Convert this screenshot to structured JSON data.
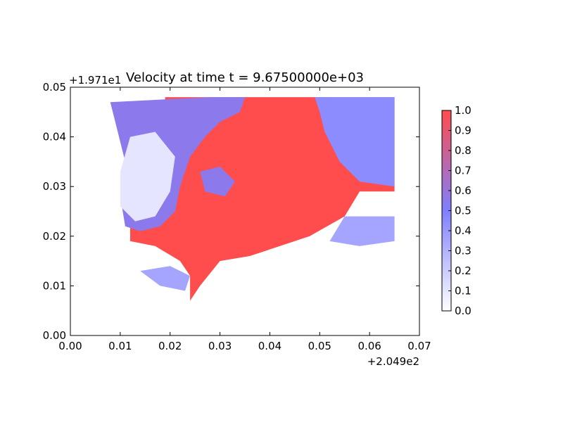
{
  "chart_data": {
    "type": "heatmap",
    "title": "Velocity at time t = 9.67500000e+03",
    "xlabel": "",
    "ylabel": "",
    "xlim": [
      0.0,
      0.07
    ],
    "ylim": [
      0.0,
      0.05
    ],
    "x_ticks": [
      "0.00",
      "0.01",
      "0.02",
      "0.03",
      "0.04",
      "0.05",
      "0.06",
      "0.07"
    ],
    "y_ticks": [
      "0.00",
      "0.01",
      "0.02",
      "0.03",
      "0.04",
      "0.05"
    ],
    "x_offset_label": "+2.049e2",
    "y_offset_label": "+1.971e1",
    "colorbar": {
      "range": [
        0.0,
        1.0
      ],
      "ticks": [
        "0.0",
        "0.1",
        "0.2",
        "0.3",
        "0.4",
        "0.5",
        "0.6",
        "0.7",
        "0.8",
        "0.9",
        "1.0"
      ],
      "colors": [
        "#ffffff",
        "#7f7fff",
        "#ff4c4c"
      ]
    },
    "value_regions": [
      {
        "value": 1.0,
        "polygon": [
          [
            0.019,
            0.048
          ],
          [
            0.065,
            0.048
          ],
          [
            0.065,
            0.029
          ],
          [
            0.058,
            0.029
          ],
          [
            0.055,
            0.024
          ],
          [
            0.048,
            0.02
          ],
          [
            0.042,
            0.018
          ],
          [
            0.036,
            0.016
          ],
          [
            0.03,
            0.015
          ],
          [
            0.026,
            0.01
          ],
          [
            0.024,
            0.007
          ],
          [
            0.024,
            0.012
          ],
          [
            0.022,
            0.015
          ],
          [
            0.017,
            0.018
          ],
          [
            0.012,
            0.019
          ],
          [
            0.012,
            0.022
          ],
          [
            0.016,
            0.022
          ],
          [
            0.019,
            0.023
          ],
          [
            0.02,
            0.027
          ],
          [
            0.018,
            0.032
          ],
          [
            0.021,
            0.036
          ],
          [
            0.025,
            0.041
          ],
          [
            0.019,
            0.046
          ]
        ]
      },
      {
        "value": 0.45,
        "polygon": [
          [
            0.049,
            0.048
          ],
          [
            0.065,
            0.048
          ],
          [
            0.065,
            0.03
          ],
          [
            0.058,
            0.031
          ],
          [
            0.054,
            0.035
          ],
          [
            0.051,
            0.041
          ],
          [
            0.05,
            0.045
          ]
        ]
      },
      {
        "value": 0.55,
        "polygon": [
          [
            0.008,
            0.047
          ],
          [
            0.028,
            0.048
          ],
          [
            0.035,
            0.048
          ],
          [
            0.034,
            0.045
          ],
          [
            0.03,
            0.043
          ],
          [
            0.027,
            0.04
          ],
          [
            0.024,
            0.036
          ],
          [
            0.022,
            0.03
          ],
          [
            0.021,
            0.025
          ],
          [
            0.018,
            0.022
          ],
          [
            0.014,
            0.021
          ],
          [
            0.011,
            0.022
          ],
          [
            0.01,
            0.028
          ],
          [
            0.011,
            0.035
          ],
          [
            0.009,
            0.043
          ]
        ]
      },
      {
        "value": 0.1,
        "polygon": [
          [
            0.012,
            0.04
          ],
          [
            0.017,
            0.041
          ],
          [
            0.021,
            0.036
          ],
          [
            0.02,
            0.029
          ],
          [
            0.017,
            0.024
          ],
          [
            0.013,
            0.023
          ],
          [
            0.01,
            0.026
          ],
          [
            0.01,
            0.033
          ]
        ]
      },
      {
        "value": 0.55,
        "polygon": [
          [
            0.026,
            0.033
          ],
          [
            0.03,
            0.034
          ],
          [
            0.033,
            0.031
          ],
          [
            0.031,
            0.028
          ],
          [
            0.027,
            0.029
          ]
        ]
      },
      {
        "value": 0.35,
        "polygon": [
          [
            0.055,
            0.024
          ],
          [
            0.065,
            0.024
          ],
          [
            0.065,
            0.019
          ],
          [
            0.058,
            0.018
          ],
          [
            0.052,
            0.019
          ]
        ]
      },
      {
        "value": 0.35,
        "polygon": [
          [
            0.014,
            0.013
          ],
          [
            0.02,
            0.014
          ],
          [
            0.024,
            0.012
          ],
          [
            0.023,
            0.009
          ],
          [
            0.018,
            0.01
          ]
        ]
      }
    ]
  }
}
